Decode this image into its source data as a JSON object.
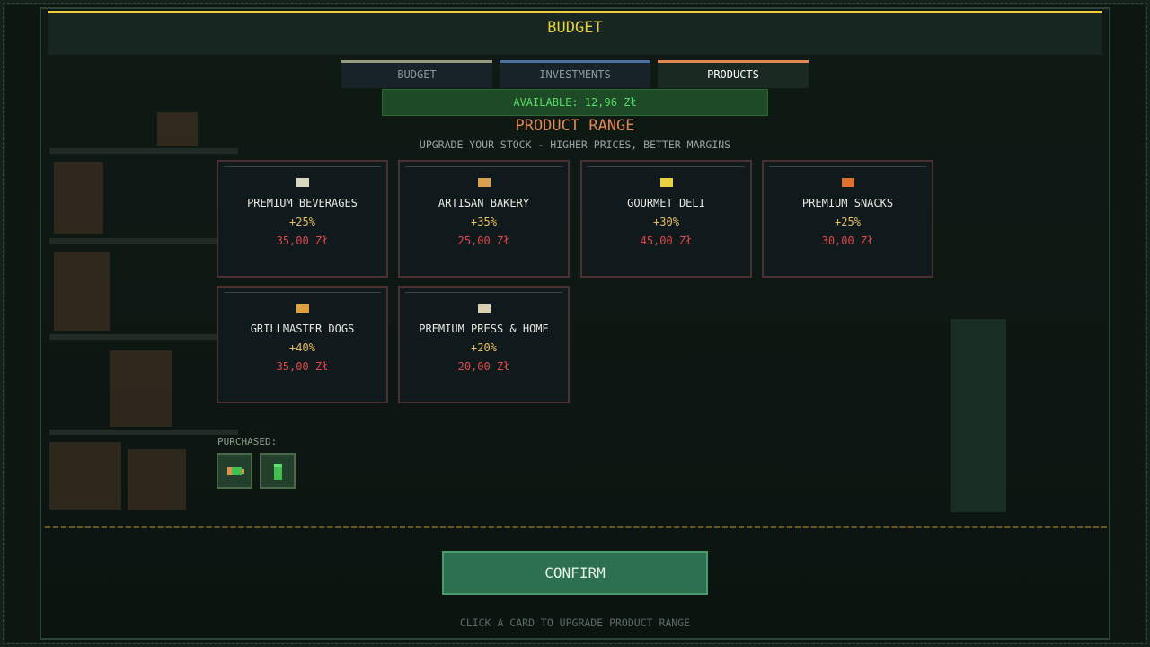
{
  "header": {
    "title": "BUDGET"
  },
  "tabs": [
    {
      "label": "BUDGET",
      "color": "#9a9a80",
      "active": false
    },
    {
      "label": "INVESTMENTS",
      "color": "#4a70a0",
      "active": false
    },
    {
      "label": "PRODUCTS",
      "color": "#e08a50",
      "active": true
    }
  ],
  "available": "AVAILABLE: 12,96 Zł",
  "product_range": {
    "title": "PRODUCT RANGE",
    "subtitle": "UPGRADE YOUR STOCK - HIGHER PRICES, BETTER MARGINS"
  },
  "cards": [
    {
      "name": "PREMIUM BEVERAGES",
      "bonus": "+25%",
      "price": "35,00 Zł",
      "icon": "beverage-icon",
      "color": "#d8d8c0"
    },
    {
      "name": "ARTISAN BAKERY",
      "bonus": "+35%",
      "price": "25,00 Zł",
      "icon": "bread-icon",
      "color": "#d8a050"
    },
    {
      "name": "GOURMET DELI",
      "bonus": "+30%",
      "price": "45,00 Zł",
      "icon": "cheese-icon",
      "color": "#e8d040"
    },
    {
      "name": "PREMIUM SNACKS",
      "bonus": "+25%",
      "price": "30,00 Zł",
      "icon": "snack-icon",
      "color": "#e07030"
    },
    {
      "name": "GRILLMASTER DOGS",
      "bonus": "+40%",
      "price": "35,00 Zł",
      "icon": "hotdog-icon",
      "color": "#e0a040"
    },
    {
      "name": "PREMIUM PRESS & HOME",
      "bonus": "+20%",
      "price": "20,00 Zł",
      "icon": "newspaper-icon",
      "color": "#d8d0b0"
    }
  ],
  "purchased": {
    "label": "PURCHASED:",
    "items": [
      {
        "icon": "battery-icon"
      },
      {
        "icon": "bottle-icon"
      }
    ]
  },
  "confirm_label": "CONFIRM",
  "hint": "CLICK A CARD TO UPGRADE PRODUCT RANGE"
}
